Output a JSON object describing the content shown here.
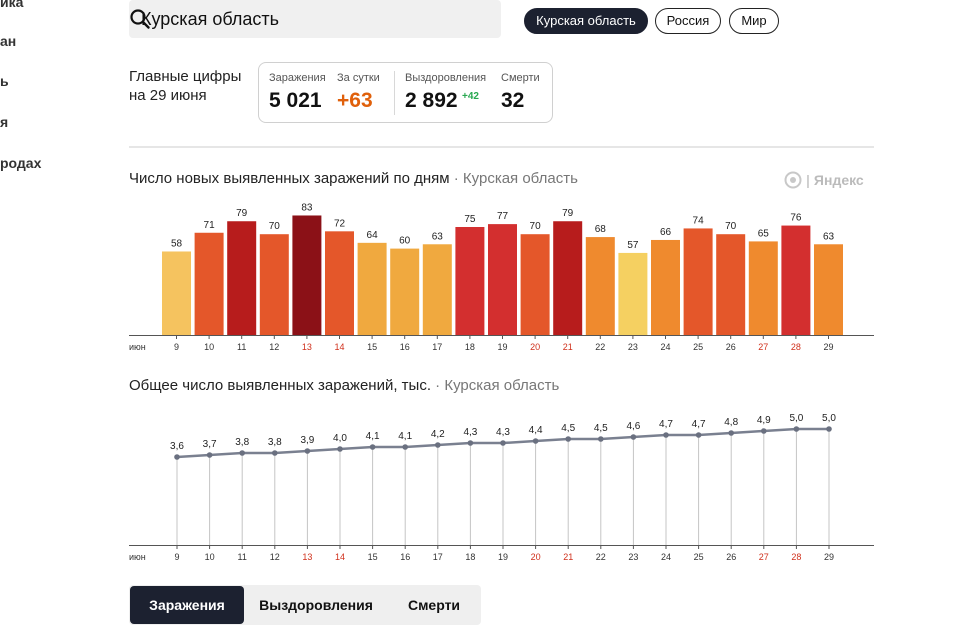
{
  "sidebar": {
    "items": [
      {
        "label": "ика"
      },
      {
        "label": "ан"
      },
      {
        "label": "ь"
      },
      {
        "label": "я"
      },
      {
        "label": "родах"
      }
    ]
  },
  "search": {
    "value": "Курская область",
    "icon": "search-icon"
  },
  "regions": [
    {
      "label": "Курская область",
      "active": true
    },
    {
      "label": "Россия",
      "active": false
    },
    {
      "label": "Мир",
      "active": false
    }
  ],
  "summary": {
    "title_line1": "Главные цифры",
    "title_line2": "на 29 июня",
    "infections_label": "Заражения",
    "infections_value": "5 021",
    "daily_label": "За сутки",
    "daily_value": "+63",
    "recoveries_label": "Выздоровления",
    "recoveries_value": "2 892",
    "recoveries_delta": "+42",
    "deaths_label": "Смерти",
    "deaths_value": "32"
  },
  "daily_chart": {
    "title": "Число новых выявленных заражений по дням",
    "separator": " · ",
    "region": "Курская область",
    "watermark": "Яндекс"
  },
  "cumulative_chart": {
    "title": "Общее число выявленных заражений, тыс.",
    "separator": " · ",
    "region": "Курская область"
  },
  "chart_data": [
    {
      "type": "bar",
      "title": "Число новых выявленных заражений по дням · Курская область",
      "month_label": "июн",
      "categories": [
        "9",
        "10",
        "11",
        "12",
        "13",
        "14",
        "15",
        "16",
        "17",
        "18",
        "19",
        "20",
        "21",
        "22",
        "23",
        "24",
        "25",
        "26",
        "27",
        "28",
        "29"
      ],
      "weekend_categories": [
        "13",
        "14",
        "20",
        "21",
        "27",
        "28"
      ],
      "values": [
        58,
        71,
        79,
        70,
        83,
        72,
        64,
        60,
        63,
        75,
        77,
        70,
        79,
        68,
        57,
        66,
        74,
        70,
        65,
        76,
        63
      ],
      "ylim": [
        0,
        90
      ],
      "colors": [
        "#f5c35f",
        "#e4572a",
        "#b71c1c",
        "#e4572a",
        "#8b1117",
        "#e4572a",
        "#f0a93f",
        "#f0a93f",
        "#f0a93f",
        "#d32f2f",
        "#d32f2f",
        "#e4572a",
        "#b71c1c",
        "#ef8a2e",
        "#f5d061",
        "#ef8a2e",
        "#e4572a",
        "#e4572a",
        "#ef8a2e",
        "#d32f2f",
        "#ef8a2e"
      ]
    },
    {
      "type": "line",
      "title": "Общее число выявленных заражений, тыс. · Курская область",
      "month_label": "июн",
      "categories": [
        "9",
        "10",
        "11",
        "12",
        "13",
        "14",
        "15",
        "16",
        "17",
        "18",
        "19",
        "20",
        "21",
        "22",
        "23",
        "24",
        "25",
        "26",
        "27",
        "28",
        "29"
      ],
      "weekend_categories": [
        "13",
        "14",
        "20",
        "21",
        "27",
        "28"
      ],
      "values": [
        3.6,
        3.7,
        3.8,
        3.8,
        3.9,
        4.0,
        4.1,
        4.1,
        4.2,
        4.3,
        4.3,
        4.4,
        4.5,
        4.5,
        4.6,
        4.7,
        4.7,
        4.8,
        4.9,
        5.0,
        5.0
      ],
      "labels": [
        "3,6",
        "3,7",
        "3,8",
        "3,8",
        "3,9",
        "4,0",
        "4,1",
        "4,1",
        "4,2",
        "4,3",
        "4,3",
        "4,4",
        "4,5",
        "4,5",
        "4,6",
        "4,7",
        "4,7",
        "4,8",
        "4,9",
        "5,0",
        "5,0"
      ],
      "ylim": [
        0,
        5.0
      ]
    }
  ],
  "tabs": [
    {
      "label": "Заражения",
      "active": true
    },
    {
      "label": "Выздоровления",
      "active": false
    },
    {
      "label": "Смерти",
      "active": false
    }
  ]
}
